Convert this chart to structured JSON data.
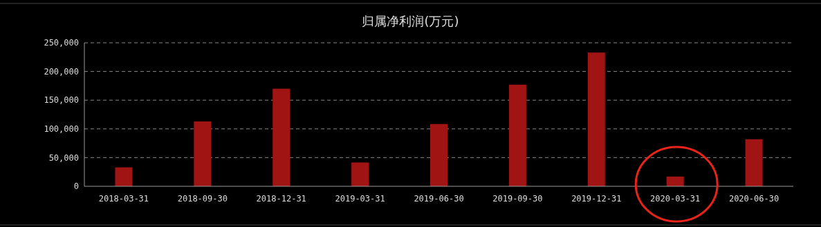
{
  "chart_data": {
    "type": "bar",
    "title": "归属净利润(万元)",
    "categories": [
      "2018-03-31",
      "2018-09-30",
      "2018-12-31",
      "2019-03-31",
      "2019-06-30",
      "2019-09-30",
      "2019-12-31",
      "2020-03-31",
      "2020-06-30"
    ],
    "values": [
      33000,
      113000,
      170000,
      41500,
      108500,
      177000,
      233000,
      17000,
      82000
    ],
    "color": "#a11414",
    "ylim": [
      0,
      250000
    ],
    "yticks": [
      {
        "value": 0,
        "label": "0"
      },
      {
        "value": 50000,
        "label": "50,000"
      },
      {
        "value": 100000,
        "label": "100,000"
      },
      {
        "value": 150000,
        "label": "150,000"
      },
      {
        "value": 200000,
        "label": "200,000"
      },
      {
        "value": 250000,
        "label": "250,000"
      }
    ],
    "grid": "y"
  }
}
